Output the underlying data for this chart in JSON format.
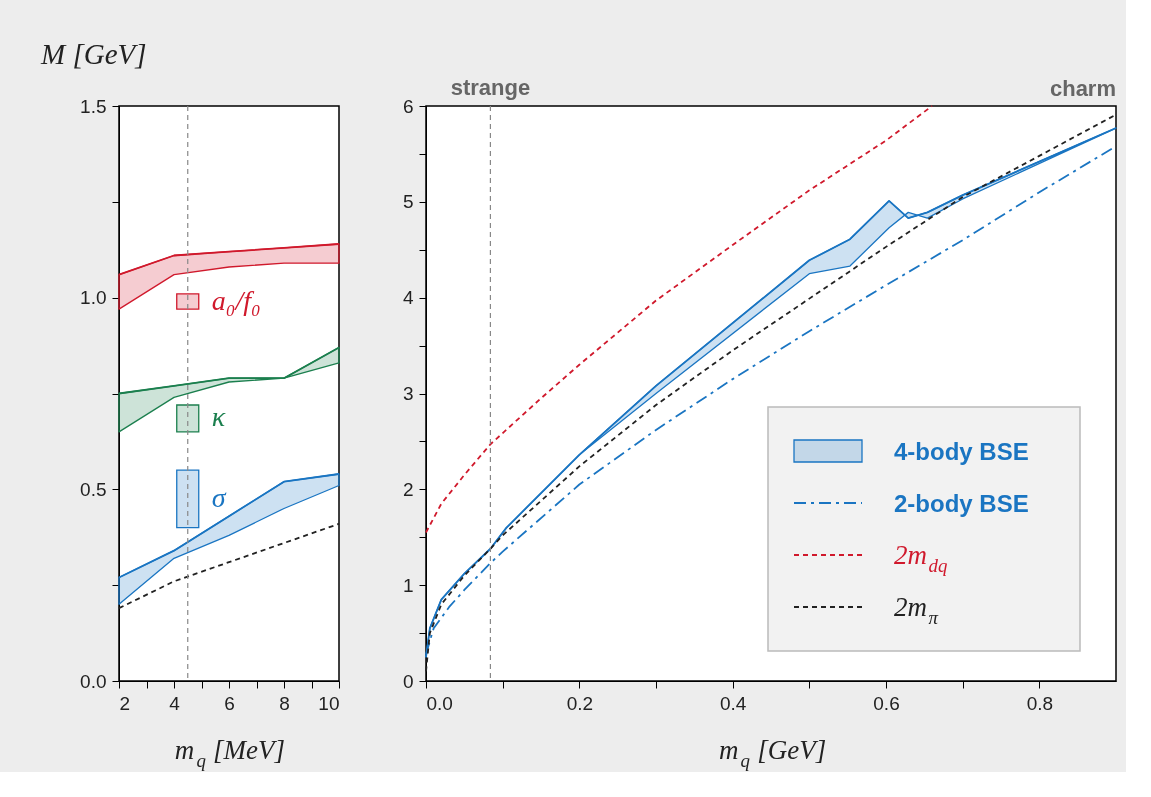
{
  "chart_data": [
    {
      "type": "line",
      "xlabel": "m$_{q}$ [MeV]",
      "ylabel": "M [GeV]",
      "xlim": [
        2,
        10
      ],
      "ylim": [
        0,
        1.5
      ],
      "xticks": [
        2,
        {
          "value": 3,
          "label": null
        },
        4,
        {
          "value": 5,
          "label": null
        },
        6,
        {
          "value": 7,
          "label": null
        },
        8,
        {
          "value": 9,
          "label": null
        },
        10
      ],
      "yticks": [
        {
          "value": 0,
          "label": "0.0"
        },
        {
          "value": 0.25,
          "label": null
        },
        {
          "value": 0.5,
          "label": "0.5"
        },
        {
          "value": 0.75,
          "label": null
        },
        {
          "value": 1.0,
          "label": "1.0"
        },
        {
          "value": 1.25,
          "label": null
        },
        {
          "value": 1.5,
          "label": "1.5"
        }
      ],
      "series": [
        {
          "color": "#d0192c",
          "x": [
            2,
            4,
            6,
            8,
            10
          ],
          "lower": [
            0.97,
            1.06,
            1.08,
            1.09,
            1.09
          ],
          "upper": [
            1.06,
            1.11,
            1.12,
            1.13,
            1.14
          ],
          "values": [
            1.06,
            1.11,
            1.12,
            1.13,
            1.14
          ]
        },
        {
          "color": "#1b7f4e",
          "x": [
            2,
            4,
            6,
            8,
            10
          ],
          "lower": [
            0.65,
            0.74,
            0.78,
            0.79,
            0.83
          ],
          "upper": [
            0.75,
            0.77,
            0.79,
            0.79,
            0.87
          ],
          "values": [
            0.75,
            0.77,
            0.79,
            0.79,
            0.87
          ]
        },
        {
          "color": "#1a75c2",
          "x": [
            2,
            4,
            6,
            8,
            10
          ],
          "lower": [
            0.2,
            0.32,
            0.38,
            0.45,
            0.51
          ],
          "upper": [
            0.27,
            0.34,
            0.43,
            0.52,
            0.54
          ],
          "values": [
            0.27,
            0.34,
            0.43,
            0.52,
            0.54
          ]
        },
        {
          "type": "line",
          "color": "#222222",
          "line_style": "dashed",
          "x": [
            2,
            4,
            6,
            8,
            10
          ],
          "values": [
            0.19,
            0.26,
            0.31,
            0.36,
            0.41
          ]
        },
        {
          "type": "bar",
          "name": "a₀/f₀",
          "color": "#d0192c",
          "x": [
            4.5
          ],
          "base": [
            0.97
          ],
          "values": [
            0.04
          ]
        },
        {
          "type": "bar",
          "name": "κ",
          "color": "#1b7f4e",
          "x": [
            4.5
          ],
          "base": [
            0.65
          ],
          "values": [
            0.07
          ]
        },
        {
          "type": "bar",
          "name": "σ",
          "color": "#1a75c2",
          "x": [
            4.5
          ],
          "base": [
            0.4
          ],
          "values": [
            0.15
          ]
        }
      ],
      "ref_lines": [
        {
          "axis": "x",
          "value": 4.5,
          "color": "#888888",
          "line_style": "dashed"
        }
      ]
    },
    {
      "type": "line",
      "xlabel": "m$_{q}$ [GeV]",
      "xlim": [
        0,
        0.9
      ],
      "ylim": [
        0,
        6
      ],
      "legend": "bottom right",
      "xticks": [
        {
          "value": 0,
          "label": "0.0"
        },
        {
          "value": 0.1,
          "label": null
        },
        {
          "value": 0.2,
          "label": "0.2"
        },
        {
          "value": 0.3,
          "label": null
        },
        {
          "value": 0.4,
          "label": "0.4"
        },
        {
          "value": 0.5,
          "label": null
        },
        {
          "value": 0.6,
          "label": "0.6"
        },
        {
          "value": 0.7,
          "label": null
        },
        {
          "value": 0.8,
          "label": "0.8"
        }
      ],
      "yticks": [
        0,
        {
          "value": 0.5,
          "label": null
        },
        1,
        {
          "value": 1.5,
          "label": null
        },
        2,
        {
          "value": 2.5,
          "label": null
        },
        3,
        {
          "value": 3.5,
          "label": null
        },
        4,
        {
          "value": 4.5,
          "label": null
        },
        5,
        {
          "value": 5.5,
          "label": null
        },
        6
      ],
      "series": [
        {
          "name": "4-body BSE",
          "color": "#1a75c2",
          "x": [
            0,
            0.005,
            0.02,
            0.05,
            0.084,
            0.105,
            0.2,
            0.3,
            0.5,
            0.553,
            0.604,
            0.629,
            0.654,
            0.7,
            0.9
          ],
          "lower": [
            0.25,
            0.55,
            0.85,
            1.12,
            1.38,
            1.6,
            2.36,
            3.0,
            4.25,
            4.33,
            4.73,
            4.89,
            4.83,
            5.03,
            5.77
          ],
          "upper": [
            0.25,
            0.55,
            0.85,
            1.12,
            1.38,
            1.6,
            2.36,
            3.08,
            4.39,
            4.61,
            5.01,
            4.83,
            4.89,
            5.07,
            5.77
          ],
          "values": [
            0.25,
            0.55,
            0.85,
            1.12,
            1.38,
            1.6,
            2.36,
            3.08,
            4.39,
            4.61,
            5.01,
            4.83,
            4.89,
            5.07,
            5.77
          ]
        },
        {
          "name": "2-body BSE",
          "color": "#1a75c2",
          "line_style": "dashdot",
          "x": [
            0,
            0.01,
            0.03,
            0.05,
            0.084,
            0.1,
            0.2,
            0.3,
            0.4,
            0.5,
            0.6,
            0.7,
            0.8,
            0.9
          ],
          "values": [
            0.28,
            0.55,
            0.77,
            0.95,
            1.23,
            1.35,
            2.05,
            2.62,
            3.15,
            3.65,
            4.13,
            4.6,
            5.1,
            5.58
          ]
        },
        {
          "name": "2m$_{dq}$",
          "color": "#d0192c",
          "line_style": "dashed",
          "x": [
            0,
            0.02,
            0.05,
            0.084,
            0.15,
            0.2,
            0.3,
            0.4,
            0.5,
            0.6,
            0.66
          ],
          "values": [
            1.55,
            1.85,
            2.15,
            2.47,
            2.95,
            3.3,
            3.97,
            4.55,
            5.12,
            5.64,
            6.0
          ]
        },
        {
          "name": "2m$_{π}$",
          "color": "#222222",
          "line_style": "dashed",
          "x": [
            0,
            0.005,
            0.02,
            0.05,
            0.084,
            0.1,
            0.2,
            0.3,
            0.4,
            0.5,
            0.6,
            0.7,
            0.8,
            0.9
          ],
          "values": [
            0.1,
            0.5,
            0.8,
            1.1,
            1.38,
            1.52,
            2.24,
            2.88,
            3.45,
            3.99,
            4.53,
            5.05,
            5.48,
            5.91
          ]
        }
      ],
      "ref_lines": [
        {
          "axis": "x",
          "value": 0.084,
          "label": "strange",
          "color": "#888888",
          "line_style": "dashed"
        }
      ],
      "annotations": [
        "charm"
      ]
    }
  ]
}
